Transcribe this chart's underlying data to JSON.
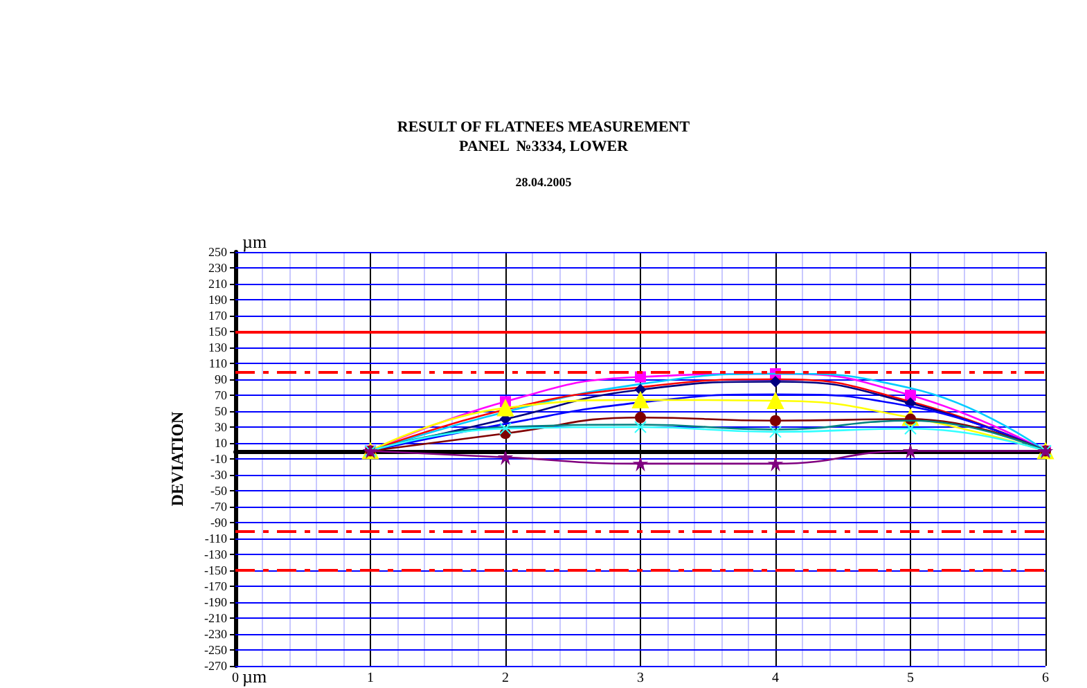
{
  "chart_data": {
    "type": "line",
    "title": "RESULT OF FLATNEES MEASUREMENT\nPANEL  №3334, LOWER",
    "subtitle": "28.04.2005",
    "ylabel": "DEVIATION",
    "annotations": [
      "µm",
      "µm"
    ],
    "x": [
      1,
      2,
      3,
      4,
      5,
      6
    ],
    "series": [
      {
        "color": "#ff00ff",
        "marker": "square",
        "values": [
          0,
          62,
          93,
          97,
          70,
          0
        ]
      },
      {
        "color": "#00ccff",
        "marker": "none",
        "values": [
          0,
          49,
          84,
          97,
          79,
          0
        ]
      },
      {
        "color": "#ff0000",
        "marker": "none",
        "values": [
          0,
          52,
          80,
          90,
          62,
          0
        ]
      },
      {
        "color": "#000080",
        "marker": "diamond",
        "values": [
          0,
          40,
          77,
          87,
          60,
          0
        ]
      },
      {
        "color": "#0000ff",
        "marker": "none",
        "values": [
          0,
          34,
          61,
          71,
          56,
          0
        ]
      },
      {
        "color": "#ffff00",
        "marker": "triangle",
        "values": [
          0,
          54,
          64,
          63,
          42,
          0
        ]
      },
      {
        "color": "#800000",
        "marker": "circle",
        "values": [
          0,
          22,
          42,
          38,
          40,
          0
        ]
      },
      {
        "color": "#008080",
        "marker": "none",
        "values": [
          0,
          30,
          33,
          27,
          38,
          0
        ]
      },
      {
        "color": "#33ffff",
        "marker": "cross",
        "values": [
          0,
          28,
          30,
          24,
          28,
          0
        ]
      },
      {
        "color": "#800080",
        "marker": "star",
        "values": [
          0,
          -8,
          -16,
          -16,
          0,
          0
        ]
      }
    ],
    "xlim": [
      0,
      6
    ],
    "xticks": [
      0,
      {
        "value": 0.2,
        "label": null
      },
      {
        "value": 0.4,
        "label": null
      },
      {
        "value": 0.6,
        "label": null
      },
      {
        "value": 0.8,
        "label": null
      },
      1,
      {
        "value": 1.2,
        "label": null
      },
      {
        "value": 1.4,
        "label": null
      },
      {
        "value": 1.6,
        "label": null
      },
      {
        "value": 1.8,
        "label": null
      },
      2,
      {
        "value": 2.2,
        "label": null
      },
      {
        "value": 2.4,
        "label": null
      },
      {
        "value": 2.6,
        "label": null
      },
      {
        "value": 2.8,
        "label": null
      },
      3,
      {
        "value": 3.2,
        "label": null
      },
      {
        "value": 3.4,
        "label": null
      },
      {
        "value": 3.6,
        "label": null
      },
      {
        "value": 3.8,
        "label": null
      },
      4,
      {
        "value": 4.2,
        "label": null
      },
      {
        "value": 4.4,
        "label": null
      },
      {
        "value": 4.6,
        "label": null
      },
      {
        "value": 4.8,
        "label": null
      },
      5,
      {
        "value": 5.2,
        "label": null
      },
      {
        "value": 5.4,
        "label": null
      },
      {
        "value": 5.6,
        "label": null
      },
      {
        "value": 5.8,
        "label": null
      },
      6
    ],
    "ylim": [
      -270,
      250
    ],
    "yticks": [
      250,
      230,
      210,
      190,
      170,
      150,
      130,
      110,
      90,
      70,
      50,
      30,
      10,
      -10,
      -30,
      -50,
      -70,
      -90,
      -110,
      -130,
      -150,
      -170,
      -190,
      -210,
      -230,
      -250,
      -270
    ],
    "ref_lines": [
      {
        "axis": "y",
        "value": 150,
        "color": "#ff0000",
        "line_style": "solid"
      },
      {
        "axis": "y",
        "value": 100,
        "color": "#ff0000",
        "line_style": "dashed"
      },
      {
        "axis": "y",
        "value": -100,
        "color": "#ff0000",
        "line_style": "dashed"
      },
      {
        "axis": "y",
        "value": -150,
        "color": "#ff0000",
        "line_style": "dashed"
      }
    ],
    "grid": true
  }
}
